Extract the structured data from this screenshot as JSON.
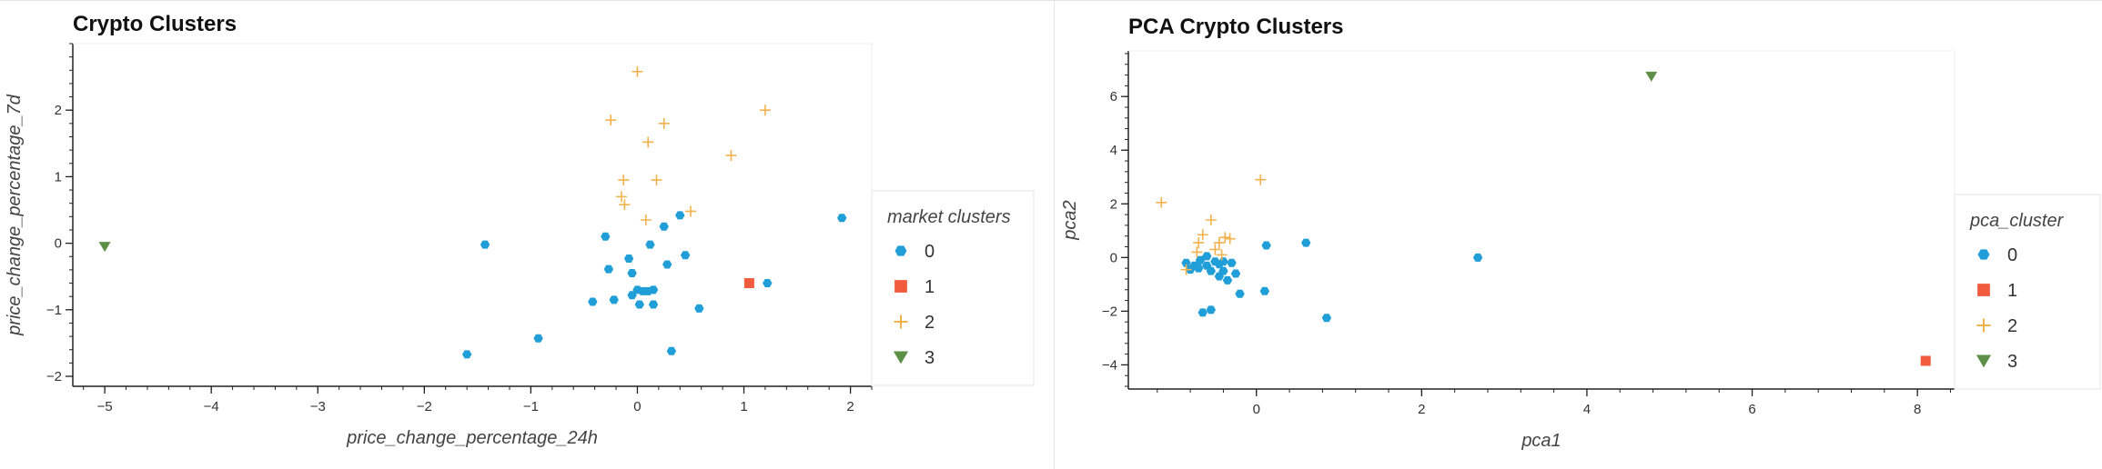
{
  "colors": {
    "cluster_0": "#1f9ed8",
    "cluster_1": "#f15a3c",
    "cluster_2": "#f4b24d",
    "cluster_3": "#5e8f47",
    "axis": "#222222",
    "legend_border": "#e5e5e5"
  },
  "chart_data": [
    {
      "type": "scatter",
      "title": "Crypto Clusters",
      "xlabel": "price_change_percentage_24h",
      "ylabel": "price_change_percentage_7d",
      "xlim": [
        -5.3,
        2.2
      ],
      "ylim": [
        -2.15,
        3.0
      ],
      "xticks": [
        -5,
        -4,
        -3,
        -2,
        -1,
        0,
        1,
        2
      ],
      "yticks": [
        -2,
        -1,
        0,
        1,
        2
      ],
      "grid": false,
      "legend_title": "market clusters",
      "legend_position": "right",
      "series": [
        {
          "name": "0",
          "marker": "hexagon",
          "points": [
            [
              -1.6,
              -1.67
            ],
            [
              -1.43,
              -0.02
            ],
            [
              -0.93,
              -1.43
            ],
            [
              -0.42,
              -0.88
            ],
            [
              -0.3,
              0.1
            ],
            [
              -0.27,
              -0.39
            ],
            [
              -0.22,
              -0.85
            ],
            [
              -0.08,
              -0.23
            ],
            [
              -0.05,
              -0.45
            ],
            [
              -0.05,
              -0.78
            ],
            [
              0.0,
              -0.7
            ],
            [
              0.02,
              -0.92
            ],
            [
              0.05,
              -0.72
            ],
            [
              0.1,
              -0.72
            ],
            [
              0.12,
              -0.02
            ],
            [
              0.15,
              -0.92
            ],
            [
              0.15,
              -0.7
            ],
            [
              0.25,
              0.25
            ],
            [
              0.28,
              -0.32
            ],
            [
              0.32,
              -1.62
            ],
            [
              0.4,
              0.42
            ],
            [
              0.45,
              -0.18
            ],
            [
              0.58,
              -0.98
            ],
            [
              1.22,
              -0.6
            ],
            [
              1.92,
              0.38
            ]
          ]
        },
        {
          "name": "1",
          "marker": "square",
          "points": [
            [
              1.05,
              -0.6
            ]
          ]
        },
        {
          "name": "2",
          "marker": "cross",
          "points": [
            [
              0.0,
              2.58
            ],
            [
              1.2,
              2.0
            ],
            [
              -0.25,
              1.85
            ],
            [
              0.25,
              1.8
            ],
            [
              0.1,
              1.52
            ],
            [
              0.88,
              1.32
            ],
            [
              -0.13,
              0.95
            ],
            [
              0.18,
              0.95
            ],
            [
              -0.15,
              0.7
            ],
            [
              -0.12,
              0.58
            ],
            [
              0.08,
              0.35
            ],
            [
              0.5,
              0.48
            ]
          ]
        },
        {
          "name": "3",
          "marker": "triangle",
          "points": [
            [
              -5.0,
              -0.05
            ]
          ]
        }
      ]
    },
    {
      "type": "scatter",
      "title": "PCA Crypto Clusters",
      "xlabel": "pca1",
      "ylabel": "pca2",
      "xlim": [
        -1.55,
        8.45
      ],
      "ylim": [
        -4.9,
        7.7
      ],
      "xticks": [
        0,
        2,
        4,
        6,
        8
      ],
      "yticks": [
        -4,
        -2,
        0,
        2,
        4,
        6
      ],
      "grid": false,
      "legend_title": "pca_cluster",
      "legend_position": "right",
      "series": [
        {
          "name": "0",
          "marker": "hexagon",
          "points": [
            [
              -0.85,
              -0.2
            ],
            [
              -0.8,
              -0.45
            ],
            [
              -0.75,
              -0.3
            ],
            [
              -0.7,
              -0.4
            ],
            [
              -0.68,
              -0.1
            ],
            [
              -0.65,
              -2.05
            ],
            [
              -0.6,
              -0.3
            ],
            [
              -0.6,
              0.05
            ],
            [
              -0.55,
              -1.95
            ],
            [
              -0.55,
              -0.5
            ],
            [
              -0.5,
              -0.15
            ],
            [
              -0.45,
              -0.7
            ],
            [
              -0.45,
              -0.25
            ],
            [
              -0.4,
              -0.5
            ],
            [
              -0.4,
              -0.15
            ],
            [
              -0.35,
              -0.85
            ],
            [
              -0.3,
              -0.2
            ],
            [
              -0.25,
              -0.6
            ],
            [
              -0.2,
              -1.35
            ],
            [
              0.1,
              -1.25
            ],
            [
              0.12,
              0.45
            ],
            [
              0.6,
              0.55
            ],
            [
              0.85,
              -2.25
            ],
            [
              2.68,
              0.0
            ]
          ]
        },
        {
          "name": "1",
          "marker": "square",
          "points": [
            [
              8.1,
              -3.85
            ]
          ]
        },
        {
          "name": "2",
          "marker": "cross",
          "points": [
            [
              -1.15,
              2.05
            ],
            [
              0.05,
              2.9
            ],
            [
              -0.55,
              1.4
            ],
            [
              -0.65,
              0.85
            ],
            [
              -0.7,
              0.55
            ],
            [
              -0.45,
              0.55
            ],
            [
              -0.38,
              0.75
            ],
            [
              -0.32,
              0.7
            ],
            [
              -0.5,
              0.3
            ],
            [
              -0.42,
              0.1
            ],
            [
              -0.72,
              0.2
            ],
            [
              -0.85,
              -0.45
            ]
          ]
        },
        {
          "name": "3",
          "marker": "triangle",
          "points": [
            [
              4.78,
              6.75
            ]
          ]
        }
      ]
    }
  ]
}
